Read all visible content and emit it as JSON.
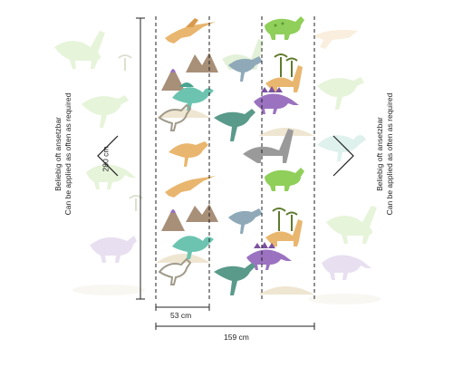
{
  "labels": {
    "height": "280 cm",
    "panel_width": "53 cm",
    "total_width": "159 cm",
    "repeat_line1": "Beliebig oft ansetzbar",
    "repeat_line2": "Can be applied as often as required"
  },
  "colors": {
    "green": "#8fcf5a",
    "teal": "#6cc4b0",
    "orange": "#e9b66f",
    "purple": "#9b72c0",
    "grey": "#9a9a9a",
    "sand": "#e8dfc9",
    "palm": "#5f7a2e",
    "volcano": "#a88f78"
  }
}
